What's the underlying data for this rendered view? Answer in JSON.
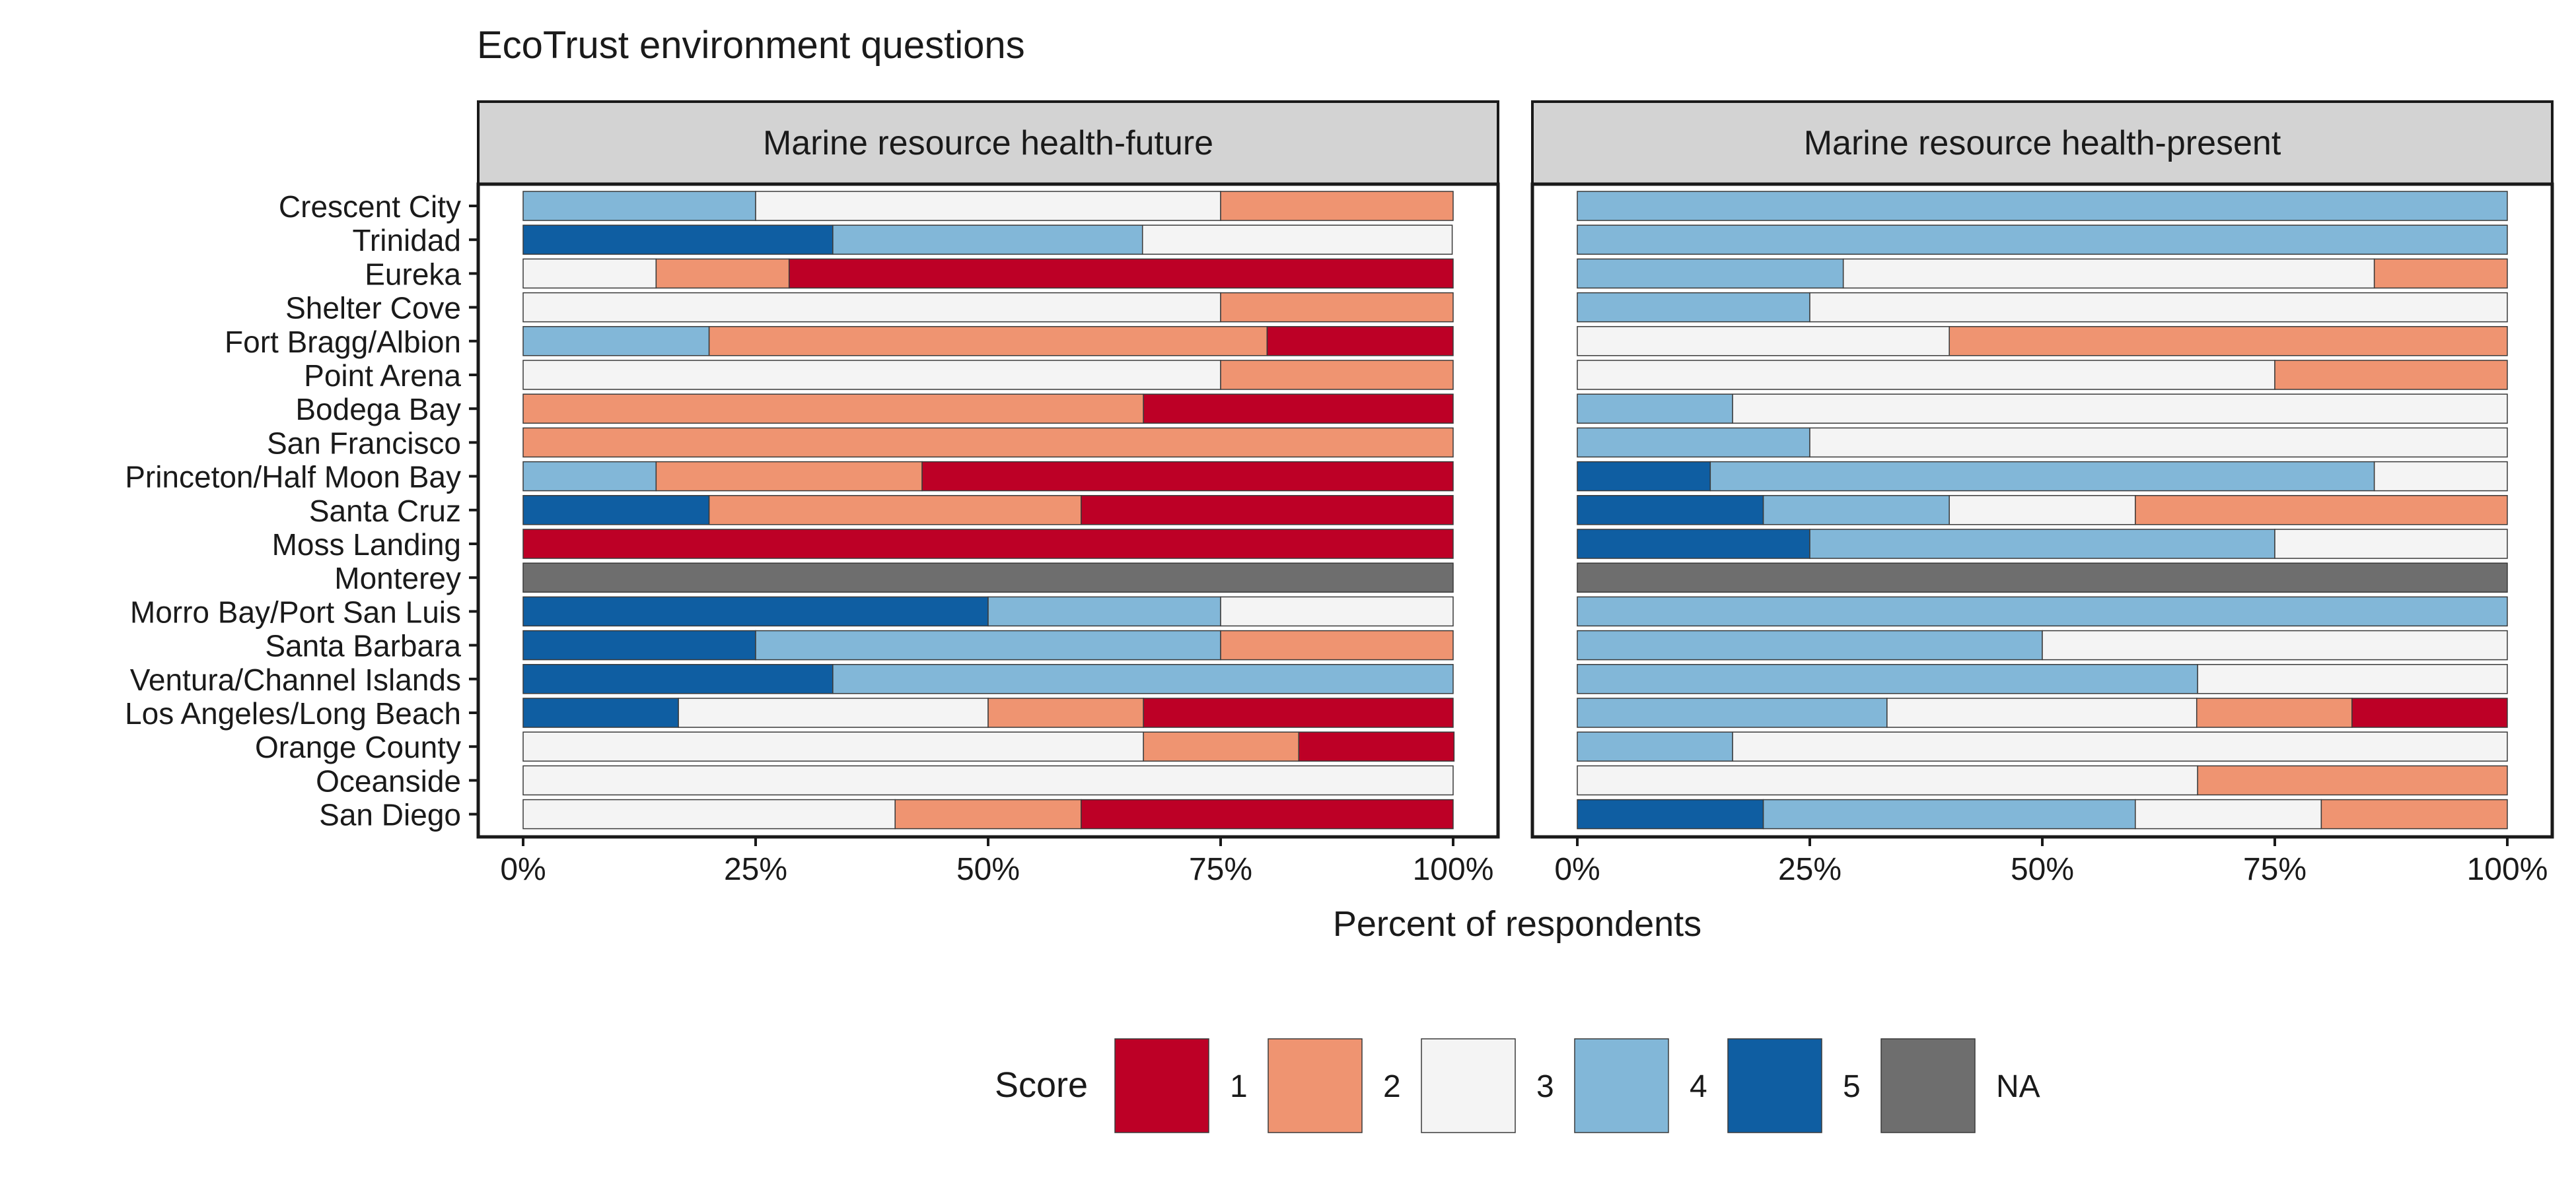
{
  "chart_data": {
    "type": "bar",
    "title": "EcoTrust environment questions",
    "xlabel": "Percent of respondents",
    "ylabel": "",
    "xlim": [
      0,
      100
    ],
    "x_ticks": [
      "0%",
      "25%",
      "50%",
      "75%",
      "100%"
    ],
    "stacked": true,
    "categories": [
      "Crescent City",
      "Trinidad",
      "Eureka",
      "Shelter Cove",
      "Fort Bragg/Albion",
      "Point Arena",
      "Bodega Bay",
      "San Francisco",
      "Princeton/Half Moon Bay",
      "Santa Cruz",
      "Moss Landing",
      "Monterey",
      "Morro Bay/Port San Luis",
      "Santa Barbara",
      "Ventura/Channel Islands",
      "Los Angeles/Long Beach",
      "Orange County",
      "Oceanside",
      "San Diego"
    ],
    "stack_order": [
      "5",
      "4",
      "3",
      "2",
      "1",
      "NA"
    ],
    "legend": {
      "title": "Score",
      "position": "bottom",
      "items": [
        {
          "label": "1",
          "color": "#bd0026"
        },
        {
          "label": "2",
          "color": "#ef9471"
        },
        {
          "label": "3",
          "color": "#f4f4f4"
        },
        {
          "label": "4",
          "color": "#82b7d8"
        },
        {
          "label": "5",
          "color": "#0f5ea2"
        },
        {
          "label": "NA",
          "color": "#6e6e6e"
        }
      ]
    },
    "panels": [
      {
        "strip": "Marine resource health-future",
        "rows": [
          {
            "5": 0,
            "4": 25,
            "3": 50,
            "2": 25,
            "1": 0,
            "NA": 0
          },
          {
            "5": 33.3,
            "4": 33.3,
            "3": 33.3,
            "2": 0,
            "1": 0,
            "NA": 0
          },
          {
            "5": 0,
            "4": 0,
            "3": 14.3,
            "2": 14.3,
            "1": 71.4,
            "NA": 0
          },
          {
            "5": 0,
            "4": 0,
            "3": 75,
            "2": 25,
            "1": 0,
            "NA": 0
          },
          {
            "5": 0,
            "4": 20,
            "3": 0,
            "2": 60,
            "1": 20,
            "NA": 0
          },
          {
            "5": 0,
            "4": 0,
            "3": 75,
            "2": 25,
            "1": 0,
            "NA": 0
          },
          {
            "5": 0,
            "4": 0,
            "3": 0,
            "2": 66.7,
            "1": 33.3,
            "NA": 0
          },
          {
            "5": 0,
            "4": 0,
            "3": 0,
            "2": 100,
            "1": 0,
            "NA": 0
          },
          {
            "5": 0,
            "4": 14.3,
            "3": 0,
            "2": 28.6,
            "1": 57.1,
            "NA": 0
          },
          {
            "5": 20,
            "4": 0,
            "3": 0,
            "2": 40,
            "1": 40,
            "NA": 0
          },
          {
            "5": 0,
            "4": 0,
            "3": 0,
            "2": 0,
            "1": 100,
            "NA": 0
          },
          {
            "5": 0,
            "4": 0,
            "3": 0,
            "2": 0,
            "1": 0,
            "NA": 100
          },
          {
            "5": 50,
            "4": 25,
            "3": 25,
            "2": 0,
            "1": 0,
            "NA": 0
          },
          {
            "5": 25,
            "4": 50,
            "3": 0,
            "2": 25,
            "1": 0,
            "NA": 0
          },
          {
            "5": 33.3,
            "4": 66.7,
            "3": 0,
            "2": 0,
            "1": 0,
            "NA": 0
          },
          {
            "5": 16.7,
            "4": 0,
            "3": 33.3,
            "2": 16.7,
            "1": 33.3,
            "NA": 0
          },
          {
            "5": 0,
            "4": 0,
            "3": 66.7,
            "2": 16.7,
            "1": 16.7,
            "NA": 0
          },
          {
            "5": 0,
            "4": 0,
            "3": 100,
            "2": 0,
            "1": 0,
            "NA": 0
          },
          {
            "5": 0,
            "4": 0,
            "3": 40,
            "2": 20,
            "1": 40,
            "NA": 0
          }
        ]
      },
      {
        "strip": "Marine resource health-present",
        "rows": [
          {
            "5": 0,
            "4": 100,
            "3": 0,
            "2": 0,
            "1": 0,
            "NA": 0
          },
          {
            "5": 0,
            "4": 100,
            "3": 0,
            "2": 0,
            "1": 0,
            "NA": 0
          },
          {
            "5": 0,
            "4": 28.6,
            "3": 57.1,
            "2": 14.3,
            "1": 0,
            "NA": 0
          },
          {
            "5": 0,
            "4": 25,
            "3": 75,
            "2": 0,
            "1": 0,
            "NA": 0
          },
          {
            "5": 0,
            "4": 0,
            "3": 40,
            "2": 60,
            "1": 0,
            "NA": 0
          },
          {
            "5": 0,
            "4": 0,
            "3": 75,
            "2": 25,
            "1": 0,
            "NA": 0
          },
          {
            "5": 0,
            "4": 16.7,
            "3": 83.3,
            "2": 0,
            "1": 0,
            "NA": 0
          },
          {
            "5": 0,
            "4": 25,
            "3": 75,
            "2": 0,
            "1": 0,
            "NA": 0
          },
          {
            "5": 14.3,
            "4": 71.4,
            "3": 14.3,
            "2": 0,
            "1": 0,
            "NA": 0
          },
          {
            "5": 20,
            "4": 20,
            "3": 20,
            "2": 40,
            "1": 0,
            "NA": 0
          },
          {
            "5": 25,
            "4": 50,
            "3": 25,
            "2": 0,
            "1": 0,
            "NA": 0
          },
          {
            "5": 0,
            "4": 0,
            "3": 0,
            "2": 0,
            "1": 0,
            "NA": 100
          },
          {
            "5": 0,
            "4": 100,
            "3": 0,
            "2": 0,
            "1": 0,
            "NA": 0
          },
          {
            "5": 0,
            "4": 50,
            "3": 50,
            "2": 0,
            "1": 0,
            "NA": 0
          },
          {
            "5": 0,
            "4": 66.7,
            "3": 33.3,
            "2": 0,
            "1": 0,
            "NA": 0
          },
          {
            "5": 0,
            "4": 33.3,
            "3": 33.3,
            "2": 16.7,
            "1": 16.7,
            "NA": 0
          },
          {
            "5": 0,
            "4": 16.7,
            "3": 83.3,
            "2": 0,
            "1": 0,
            "NA": 0
          },
          {
            "5": 0,
            "4": 0,
            "3": 66.7,
            "2": 33.3,
            "1": 0,
            "NA": 0
          },
          {
            "5": 20,
            "4": 40,
            "3": 20,
            "2": 20,
            "1": 0,
            "NA": 0
          }
        ]
      }
    ]
  }
}
